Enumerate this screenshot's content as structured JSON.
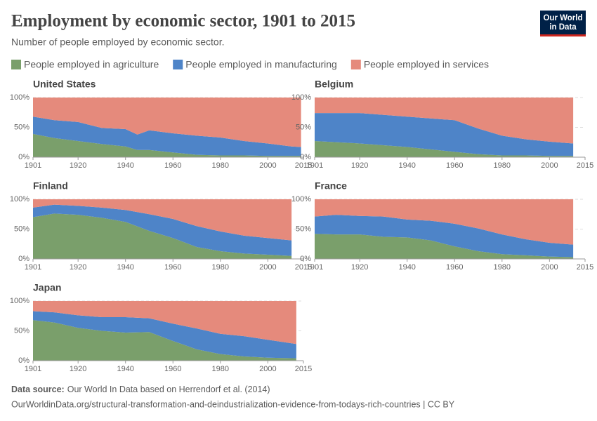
{
  "header": {
    "title": "Employment by economic sector, 1901 to 2015",
    "subtitle": "Number of people employed by economic sector."
  },
  "logo": {
    "line1": "Our World",
    "line2": "in Data"
  },
  "footer": {
    "source_label": "Data source:",
    "source": "Our World In Data based on Herrendorf et al. (2014)",
    "url": "OurWorldinData.org/structural-transformation-and-deindustrialization-evidence-from-todays-rich-countries | CC BY"
  },
  "chart_data": [
    {
      "type": "area",
      "title": "United States",
      "x": [
        1901,
        1910,
        1920,
        1930,
        1940,
        1945,
        1950,
        1960,
        1970,
        1980,
        1990,
        2000,
        2010,
        2014
      ],
      "series": [
        {
          "name": "People employed in agriculture",
          "color": "#7a9f6b",
          "values": [
            39,
            32,
            27,
            22,
            18,
            12,
            12,
            8,
            4,
            3,
            3,
            2,
            2,
            2
          ]
        },
        {
          "name": "People employed in manufacturing",
          "color": "#4e84c8",
          "values": [
            29,
            30,
            32,
            27,
            29,
            26,
            33,
            32,
            32,
            30,
            24,
            21,
            16,
            15
          ]
        },
        {
          "name": "People employed in services",
          "color": "#e58a7c",
          "values": [
            32,
            38,
            41,
            51,
            53,
            62,
            55,
            60,
            64,
            67,
            73,
            77,
            82,
            83
          ]
        }
      ],
      "xlim": [
        1901,
        2015
      ],
      "ylim": [
        0,
        100
      ],
      "xticks": [
        1901,
        1920,
        1940,
        1960,
        1980,
        2000,
        2015
      ],
      "yticks": [
        {
          "value": 0,
          "label": "0%"
        },
        {
          "value": 50,
          "label": "50%"
        },
        {
          "value": 100,
          "label": "100%"
        }
      ]
    },
    {
      "type": "area",
      "title": "Belgium",
      "x": [
        1901,
        1920,
        1940,
        1960,
        1970,
        1980,
        1990,
        2000,
        2010
      ],
      "series": [
        {
          "name": "People employed in agriculture",
          "color": "#7a9f6b",
          "values": [
            27,
            23,
            17,
            9,
            5,
            3,
            3,
            2,
            2
          ]
        },
        {
          "name": "People employed in manufacturing",
          "color": "#4e84c8",
          "values": [
            47,
            51,
            51,
            53,
            43,
            33,
            27,
            24,
            21
          ]
        },
        {
          "name": "People employed in services",
          "color": "#e58a7c",
          "values": [
            26,
            26,
            32,
            38,
            52,
            64,
            70,
            74,
            77
          ]
        }
      ],
      "xlim": [
        1901,
        2015
      ],
      "ylim": [
        0,
        100
      ],
      "xticks": [
        1901,
        1920,
        1940,
        1960,
        1980,
        2000,
        2015
      ],
      "yticks": [
        {
          "value": 0,
          "label": "0%"
        },
        {
          "value": 50,
          "label": "50%"
        },
        {
          "value": 100,
          "label": "100%"
        }
      ]
    },
    {
      "type": "area",
      "title": "Finland",
      "x": [
        1901,
        1910,
        1920,
        1930,
        1940,
        1950,
        1960,
        1970,
        1980,
        1990,
        2000,
        2010
      ],
      "series": [
        {
          "name": "People employed in agriculture",
          "color": "#7a9f6b",
          "values": [
            70,
            76,
            74,
            69,
            62,
            47,
            35,
            20,
            13,
            9,
            7,
            5
          ]
        },
        {
          "name": "People employed in manufacturing",
          "color": "#4e84c8",
          "values": [
            16,
            15,
            15,
            17,
            20,
            28,
            32,
            35,
            33,
            30,
            28,
            26
          ]
        },
        {
          "name": "People employed in services",
          "color": "#e58a7c",
          "values": [
            14,
            9,
            11,
            14,
            18,
            25,
            33,
            45,
            54,
            61,
            65,
            69
          ]
        }
      ],
      "xlim": [
        1901,
        2015
      ],
      "ylim": [
        0,
        100
      ],
      "xticks": [
        1901,
        1920,
        1940,
        1960,
        1980,
        2000,
        2015
      ],
      "yticks": [
        {
          "value": 0,
          "label": "0%"
        },
        {
          "value": 50,
          "label": "50%"
        },
        {
          "value": 100,
          "label": "100%"
        }
      ]
    },
    {
      "type": "area",
      "title": "France",
      "x": [
        1901,
        1910,
        1920,
        1930,
        1940,
        1950,
        1960,
        1970,
        1980,
        1990,
        2000,
        2010
      ],
      "series": [
        {
          "name": "People employed in agriculture",
          "color": "#7a9f6b",
          "values": [
            42,
            41,
            41,
            37,
            36,
            31,
            21,
            13,
            8,
            6,
            4,
            3
          ]
        },
        {
          "name": "People employed in manufacturing",
          "color": "#4e84c8",
          "values": [
            29,
            33,
            31,
            34,
            30,
            33,
            38,
            38,
            33,
            27,
            23,
            21
          ]
        },
        {
          "name": "People employed in services",
          "color": "#e58a7c",
          "values": [
            29,
            26,
            28,
            29,
            34,
            36,
            41,
            49,
            59,
            67,
            73,
            76
          ]
        }
      ],
      "xlim": [
        1901,
        2015
      ],
      "ylim": [
        0,
        100
      ],
      "xticks": [
        1901,
        1920,
        1940,
        1960,
        1980,
        2000,
        2015
      ],
      "yticks": [
        {
          "value": 0,
          "label": "0%"
        },
        {
          "value": 50,
          "label": "50%"
        },
        {
          "value": 100,
          "label": "100%"
        }
      ]
    },
    {
      "type": "area",
      "title": "Japan",
      "x": [
        1901,
        1910,
        1920,
        1930,
        1940,
        1950,
        1960,
        1970,
        1980,
        1990,
        2000,
        2012
      ],
      "series": [
        {
          "name": "People employed in agriculture",
          "color": "#7a9f6b",
          "values": [
            68,
            64,
            55,
            50,
            47,
            48,
            33,
            19,
            11,
            7,
            5,
            4
          ]
        },
        {
          "name": "People employed in manufacturing",
          "color": "#4e84c8",
          "values": [
            15,
            17,
            21,
            23,
            26,
            23,
            29,
            35,
            34,
            34,
            30,
            24
          ]
        },
        {
          "name": "People employed in services",
          "color": "#e58a7c",
          "values": [
            17,
            19,
            24,
            27,
            27,
            29,
            38,
            46,
            55,
            59,
            65,
            72
          ]
        }
      ],
      "xlim": [
        1901,
        2015
      ],
      "ylim": [
        0,
        100
      ],
      "xticks": [
        1901,
        1920,
        1940,
        1960,
        1980,
        2000,
        2015
      ],
      "yticks": [
        {
          "value": 0,
          "label": "0%"
        },
        {
          "value": 50,
          "label": "50%"
        },
        {
          "value": 100,
          "label": "100%"
        }
      ]
    }
  ]
}
